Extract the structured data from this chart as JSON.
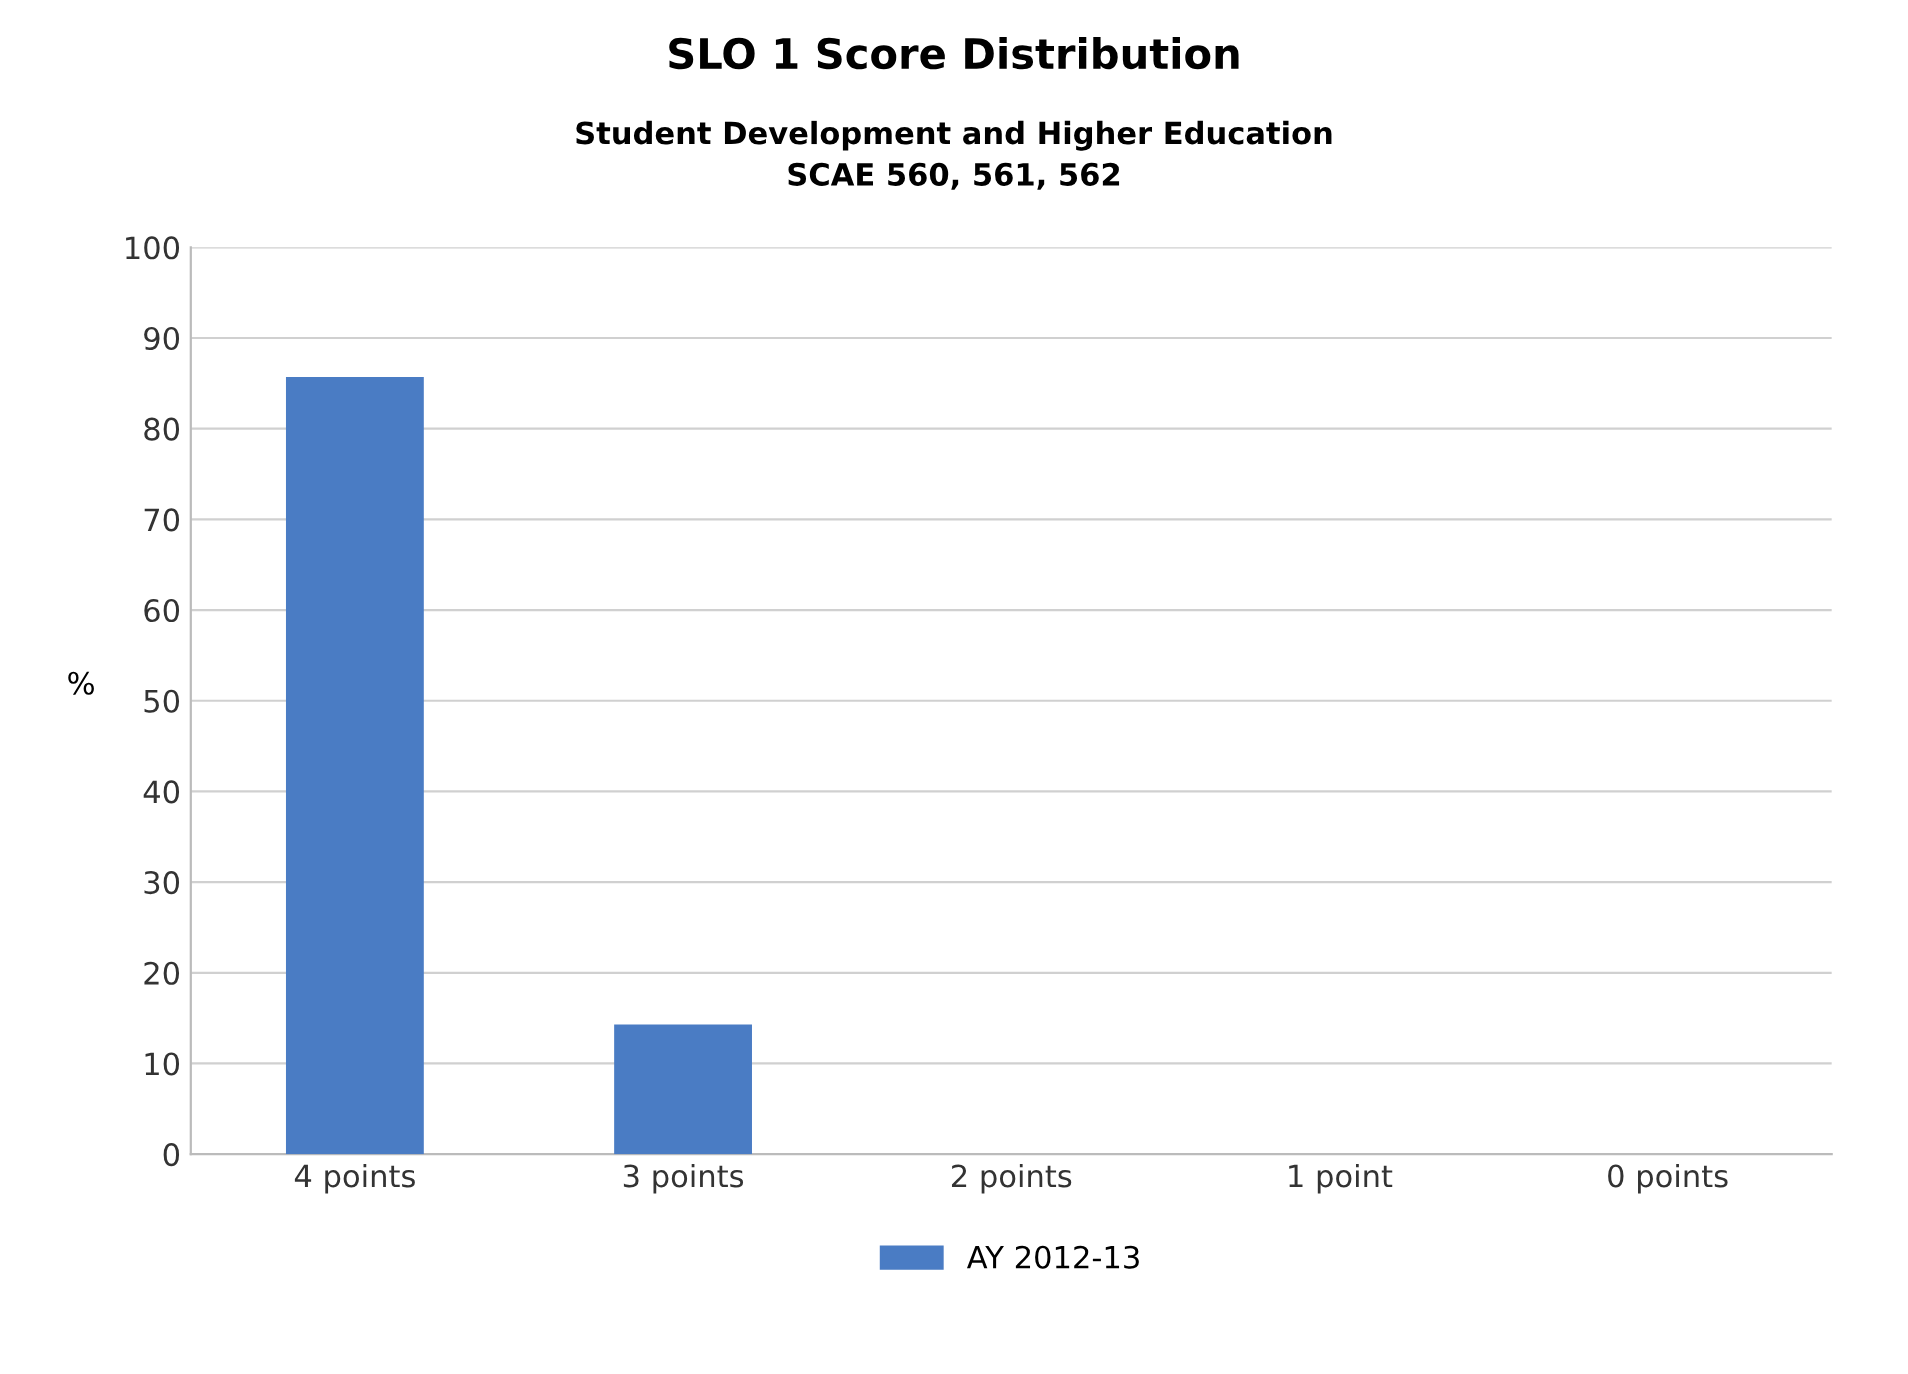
{
  "chart_data": {
    "type": "bar",
    "title": "SLO 1 Score Distribution",
    "subtitle": "Student Development and Higher Education\nSCAE 560, 561, 562",
    "ylabel": "%",
    "categories": [
      "4 points",
      "3 points",
      "2 points",
      "1 point",
      "0 points"
    ],
    "series": [
      {
        "name": "AY 2012-13",
        "color": "#4a7cc4",
        "values": [
          85.7,
          14.3,
          0,
          0,
          0
        ]
      }
    ],
    "ylim": [
      0,
      100
    ],
    "yticks": [
      0,
      10,
      20,
      30,
      40,
      50,
      60,
      70,
      80,
      90,
      100
    ],
    "grid": "y",
    "legend": "bottom"
  }
}
